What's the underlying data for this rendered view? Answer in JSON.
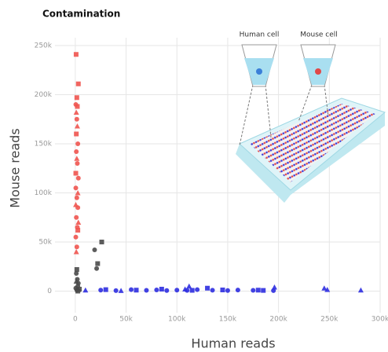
{
  "chart_data": {
    "type": "scatter",
    "title": "Contamination",
    "x_label": "Human reads",
    "y_label": "Mouse reads",
    "annotations": [
      "Human cell",
      "Mouse cell"
    ],
    "xlim": [
      -20000,
      300000
    ],
    "ylim": [
      -22000,
      258000
    ],
    "xticks": [
      0,
      {
        "value": 50000,
        "label": "50k"
      },
      {
        "value": 100000,
        "label": "100k"
      },
      {
        "value": 150000,
        "label": "150k"
      },
      {
        "value": 200000,
        "label": "200k"
      },
      {
        "value": 250000,
        "label": "250k"
      },
      {
        "value": 300000,
        "label": "300k"
      }
    ],
    "yticks": [
      0,
      {
        "value": 50000,
        "label": "50k"
      },
      {
        "value": 100000,
        "label": "100k"
      },
      {
        "value": 150000,
        "label": "150k"
      },
      {
        "value": 200000,
        "label": "200k"
      },
      {
        "value": 250000,
        "label": "250k"
      }
    ],
    "grid": true,
    "series": [
      {
        "color": "#f0544f",
        "marker": "square",
        "x": [
          800,
          3000,
          1500,
          2000,
          1000,
          500,
          2500
        ],
        "y": [
          241000,
          211000,
          197000,
          188000,
          160000,
          120000,
          62000
        ]
      },
      {
        "color": "#f0544f",
        "marker": "circle",
        "x": [
          500,
          1500,
          2500,
          1000,
          2000,
          3000,
          500,
          1500,
          2500,
          1000,
          2000,
          500,
          1500
        ],
        "y": [
          190000,
          175000,
          150000,
          142000,
          130000,
          115000,
          105000,
          95000,
          85000,
          75000,
          65000,
          55000,
          45000
        ]
      },
      {
        "color": "#f0544f",
        "marker": "triangle",
        "x": [
          1000,
          2000,
          1500,
          2500,
          500,
          3000,
          1000
        ],
        "y": [
          182000,
          168000,
          135000,
          100000,
          88000,
          70000,
          40000
        ]
      },
      {
        "color": "#4a4a4a",
        "marker": "circle",
        "x": [
          19000,
          21000,
          1000,
          2000,
          3000,
          500,
          1500,
          2500
        ],
        "y": [
          42000,
          23000,
          18000,
          12000,
          8000,
          3000,
          1000,
          5000
        ]
      },
      {
        "color": "#4a4a4a",
        "marker": "square",
        "x": [
          26000,
          22000,
          1500,
          4000,
          2500
        ],
        "y": [
          50000,
          28000,
          22000,
          2000,
          0
        ]
      },
      {
        "color": "#4a4a4a",
        "marker": "triangle",
        "x": [
          1000,
          3000
        ],
        "y": [
          10000,
          1500
        ]
      },
      {
        "color": "#2d2de0",
        "marker": "circle",
        "x": [
          25000,
          40000,
          55000,
          70000,
          80000,
          90000,
          100000,
          110000,
          120000,
          135000,
          150000,
          160000,
          175000,
          195000
        ],
        "y": [
          1000,
          500,
          1500,
          800,
          1200,
          600,
          1000,
          700,
          1500,
          900,
          600,
          1100,
          800,
          500
        ]
      },
      {
        "color": "#2d2de0",
        "marker": "square",
        "x": [
          30000,
          60000,
          85000,
          115000,
          130000,
          145000,
          180000,
          185000
        ],
        "y": [
          1500,
          1000,
          2000,
          800,
          3000,
          1200,
          1000,
          700
        ]
      },
      {
        "color": "#2d2de0",
        "marker": "triangle",
        "x": [
          10000,
          45000,
          108000,
          112000,
          196000,
          245000,
          248000,
          281000
        ],
        "y": [
          1000,
          500,
          2000,
          5000,
          4000,
          3000,
          1500,
          1000
        ]
      }
    ]
  }
}
